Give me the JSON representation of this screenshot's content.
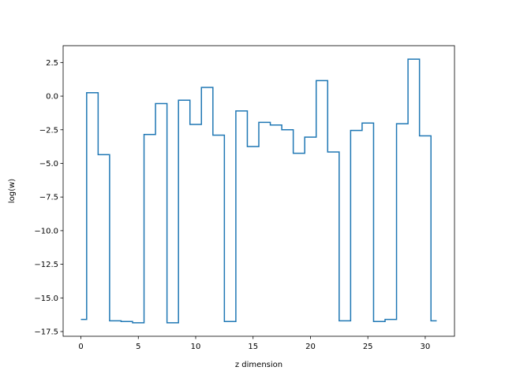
{
  "chart_data": {
    "type": "line",
    "drawstyle": "steps-mid",
    "xlabel": "z dimension",
    "ylabel": "log(w)",
    "xlim": [
      -1.55,
      32.55
    ],
    "ylim": [
      -17.85,
      3.75
    ],
    "xticks": [
      0,
      5,
      10,
      15,
      20,
      25,
      30
    ],
    "yticks": [
      2.5,
      0.0,
      -2.5,
      -5.0,
      -7.5,
      -10.0,
      -12.5,
      -15.0,
      -17.5
    ],
    "xtick_labels": [
      "0",
      "5",
      "10",
      "15",
      "20",
      "25",
      "30"
    ],
    "ytick_labels": [
      "2.5",
      "0.0",
      "−2.5",
      "−5.0",
      "−7.5",
      "−10.0",
      "−12.5",
      "−15.0",
      "−17.5"
    ],
    "grid": false,
    "series": [
      {
        "color": "#1f77b4",
        "x": [
          0,
          1,
          2,
          3,
          4,
          5,
          6,
          7,
          8,
          9,
          10,
          11,
          12,
          13,
          14,
          15,
          16,
          17,
          18,
          19,
          20,
          21,
          22,
          23,
          24,
          25,
          26,
          27,
          28,
          29,
          30,
          31
        ],
        "y": [
          -16.6,
          0.25,
          -4.35,
          -16.7,
          -16.75,
          -16.85,
          -2.85,
          -0.55,
          -16.85,
          -0.3,
          -2.1,
          0.65,
          -2.9,
          -16.75,
          -1.1,
          -3.75,
          -1.95,
          -2.15,
          -2.5,
          -4.25,
          -3.05,
          1.15,
          -4.15,
          -16.7,
          -2.55,
          -2.0,
          -16.75,
          -16.6,
          -2.05,
          2.75,
          -2.95,
          -16.7
        ]
      }
    ]
  }
}
